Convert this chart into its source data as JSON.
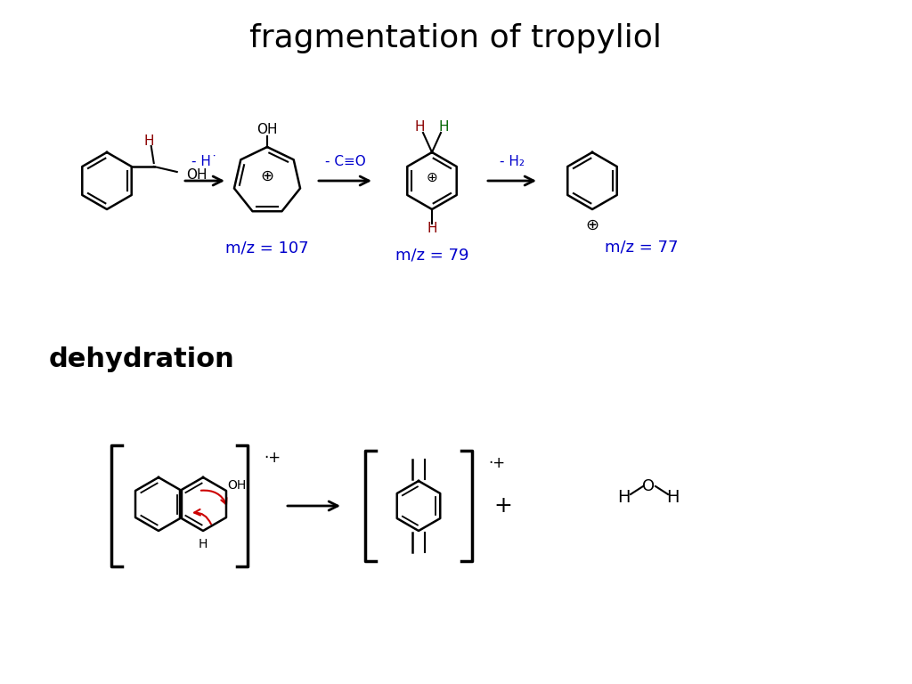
{
  "title": "fragmentation of tropyliol",
  "subtitle": "dehydration",
  "bg_color": "#ffffff",
  "title_color": "#000000",
  "subtitle_color": "#000000",
  "blue_color": "#0000cc",
  "arrow_color": "#000000",
  "red_color": "#cc0000",
  "label_107": "m/z = 107",
  "label_79": "m/z = 79",
  "label_77": "m/z = 77",
  "step1_label": "- H˙",
  "step2_label": "- C≡O",
  "step3_label": "- H₂"
}
